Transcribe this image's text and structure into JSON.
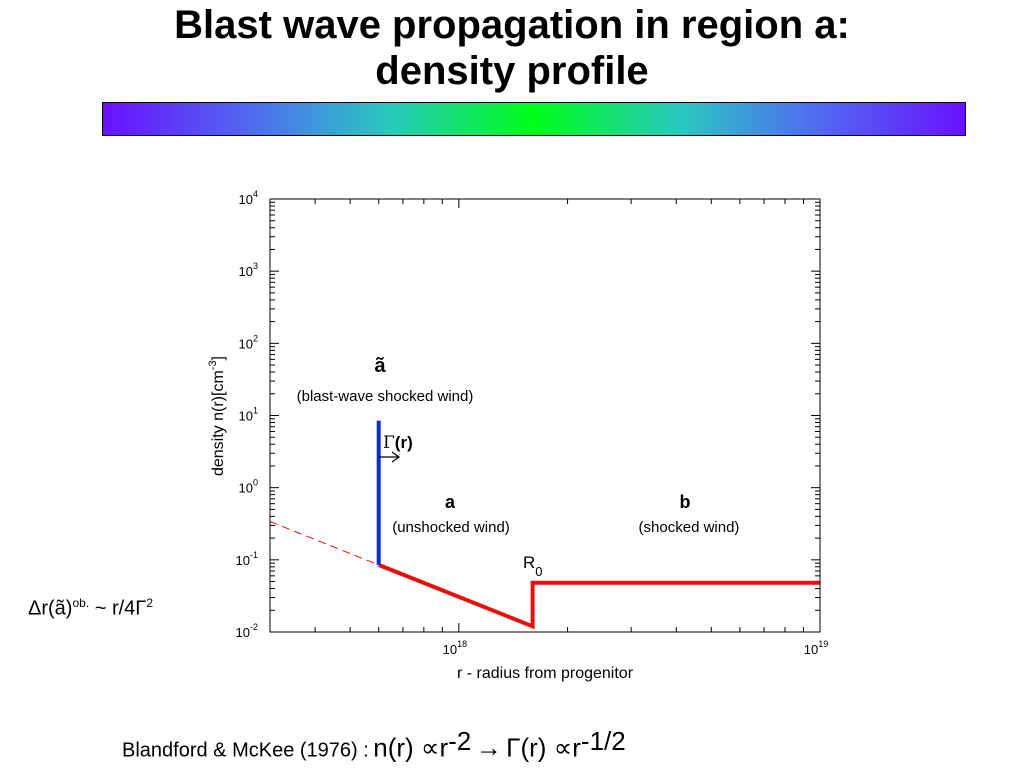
{
  "title": {
    "line1": "Blast wave propagation in region a:",
    "line2": "density profile"
  },
  "chart_data": {
    "type": "line",
    "xlabel": "r - radius from progenitor",
    "ylabel": "density n(r)[cm",
    "ylabel_exp": "-3",
    "ylabel_close": "]",
    "x_scale": "log",
    "y_scale": "log",
    "xlim": [
      3e+17,
      1e+19
    ],
    "ylim": [
      0.01,
      10000
    ],
    "x_ticks": [
      {
        "base": "10",
        "exp": "18",
        "value": 1e+18
      },
      {
        "base": "10",
        "exp": "19",
        "value": 1e+19
      }
    ],
    "y_ticks": [
      {
        "base": "10",
        "exp": "4",
        "value": 10000
      },
      {
        "base": "10",
        "exp": "3",
        "value": 1000
      },
      {
        "base": "10",
        "exp": "2",
        "value": 100
      },
      {
        "base": "10",
        "exp": "1",
        "value": 10
      },
      {
        "base": "10",
        "exp": "0",
        "value": 1
      },
      {
        "base": "10",
        "exp": "-1",
        "value": 0.1
      },
      {
        "base": "10",
        "exp": "-2",
        "value": 0.01
      }
    ],
    "series": [
      {
        "color": "#e8100c",
        "style": "solid",
        "points": [
          [
            6e+17,
            0.085
          ],
          [
            1.6e+18,
            0.012
          ],
          [
            1.6e+18,
            0.048
          ],
          [
            1e+19,
            0.048
          ]
        ]
      },
      {
        "color": "#0a2bd6",
        "style": "solid",
        "points": [
          [
            6e+17,
            0.085
          ],
          [
            6e+17,
            8.5
          ]
        ]
      },
      {
        "color": "#e8100c",
        "style": "dashed",
        "points": [
          [
            3e+17,
            0.34
          ],
          [
            6e+17,
            0.085
          ]
        ]
      }
    ],
    "annotations": {
      "a_tilde": "ã",
      "a_tilde_desc": "(blast-wave shocked wind)",
      "gamma": "Γ",
      "gamma_arg": "(r)",
      "a_label": "a",
      "a_desc": "(unshocked wind)",
      "b_label": "b",
      "b_desc": "(shocked wind)",
      "r0_letter": "R",
      "r0_sub": "0"
    }
  },
  "delta_note": {
    "prefix": "Δr(ã)",
    "sup": "ob.",
    "mid": " ~ r/4Γ",
    "sup2": "2"
  },
  "formula": {
    "citation": "Blandford & McKee (1976) :",
    "n_r": "n(r) ∝r",
    "n_exp": "-2",
    "arrow": "→",
    "gamma_r": "Γ(r) ∝r",
    "gamma_exp": "-1/2"
  }
}
